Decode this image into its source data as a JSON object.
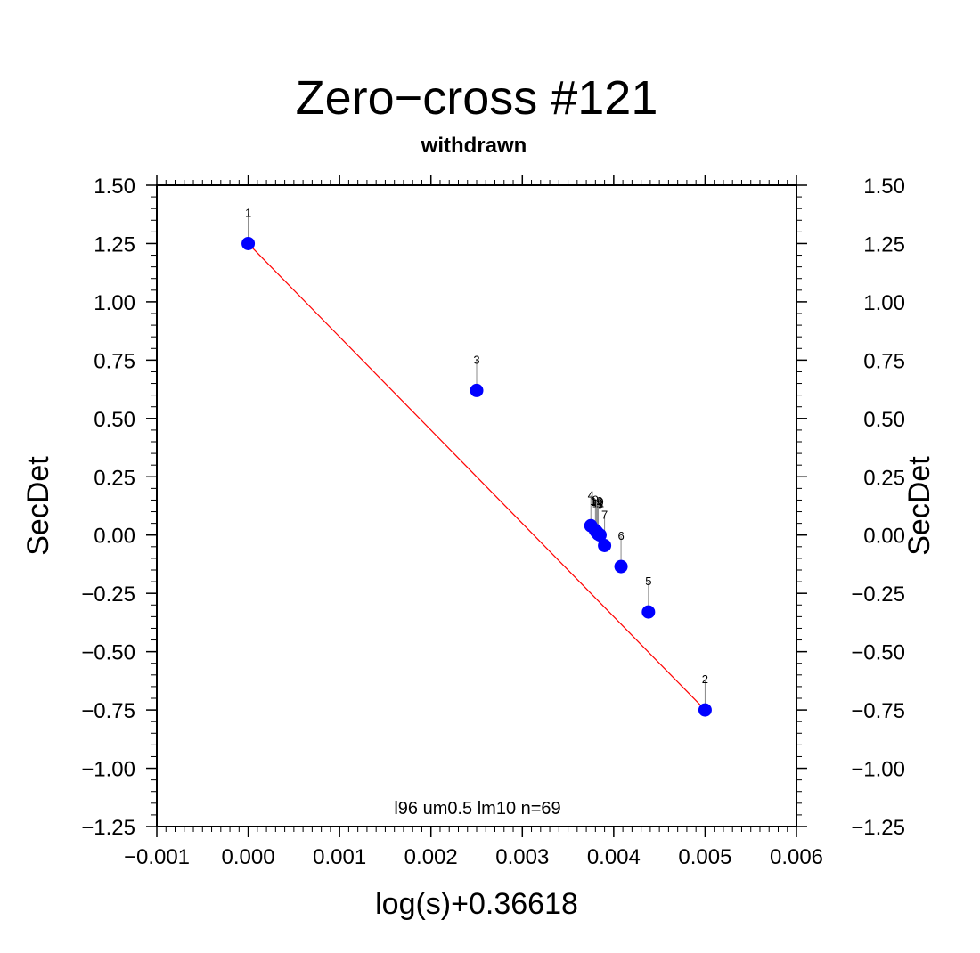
{
  "chart_data": {
    "type": "scatter",
    "title": "Zero−cross #121",
    "subtitle": "withdrawn",
    "xlabel": "log(s)+0.36618",
    "ylabel": "SecDet",
    "annotation": "l96 um0.5 lm10 n=69",
    "xlim": [
      -0.001,
      0.006
    ],
    "ylim": [
      -1.25,
      1.5
    ],
    "x_ticks": [
      -0.001,
      0.0,
      0.001,
      0.002,
      0.003,
      0.004,
      0.005,
      0.006
    ],
    "x_tick_labels": [
      "−0.001",
      "0.000",
      "0.001",
      "0.002",
      "0.003",
      "0.004",
      "0.005",
      "0.006"
    ],
    "y_ticks": [
      -1.25,
      -1.0,
      -0.75,
      -0.5,
      -0.25,
      0.0,
      0.25,
      0.5,
      0.75,
      1.0,
      1.25,
      1.5
    ],
    "y_tick_labels": [
      "−1.25",
      "−1.00",
      "−0.75",
      "−0.50",
      "−0.25",
      "0.00",
      "0.25",
      "0.50",
      "0.75",
      "1.00",
      "1.25",
      "1.50"
    ],
    "points": [
      {
        "label": "1",
        "x": 0.0,
        "y": 1.25
      },
      {
        "label": "2",
        "x": 0.005,
        "y": -0.75
      },
      {
        "label": "3",
        "x": 0.0025,
        "y": 0.62
      },
      {
        "label": "4",
        "x": 0.00375,
        "y": 0.04
      },
      {
        "label": "5",
        "x": 0.00438,
        "y": -0.33
      },
      {
        "label": "6",
        "x": 0.00408,
        "y": -0.135
      },
      {
        "label": "7",
        "x": 0.0039,
        "y": -0.045
      },
      {
        "label": "8",
        "x": 0.00385,
        "y": 0.0
      },
      {
        "label": "9",
        "x": 0.0038,
        "y": 0.02
      },
      {
        "label": "10",
        "x": 0.00382,
        "y": 0.01
      },
      {
        "label": "11",
        "x": 0.00383,
        "y": 0.005
      },
      {
        "label": "12",
        "x": 0.00381,
        "y": 0.015
      }
    ],
    "fit_line": {
      "x": [
        0.0,
        0.005
      ],
      "y": [
        1.25,
        -0.75
      ]
    },
    "point_color": "#0000ff",
    "line_color": "#ff0000",
    "grid": false
  }
}
